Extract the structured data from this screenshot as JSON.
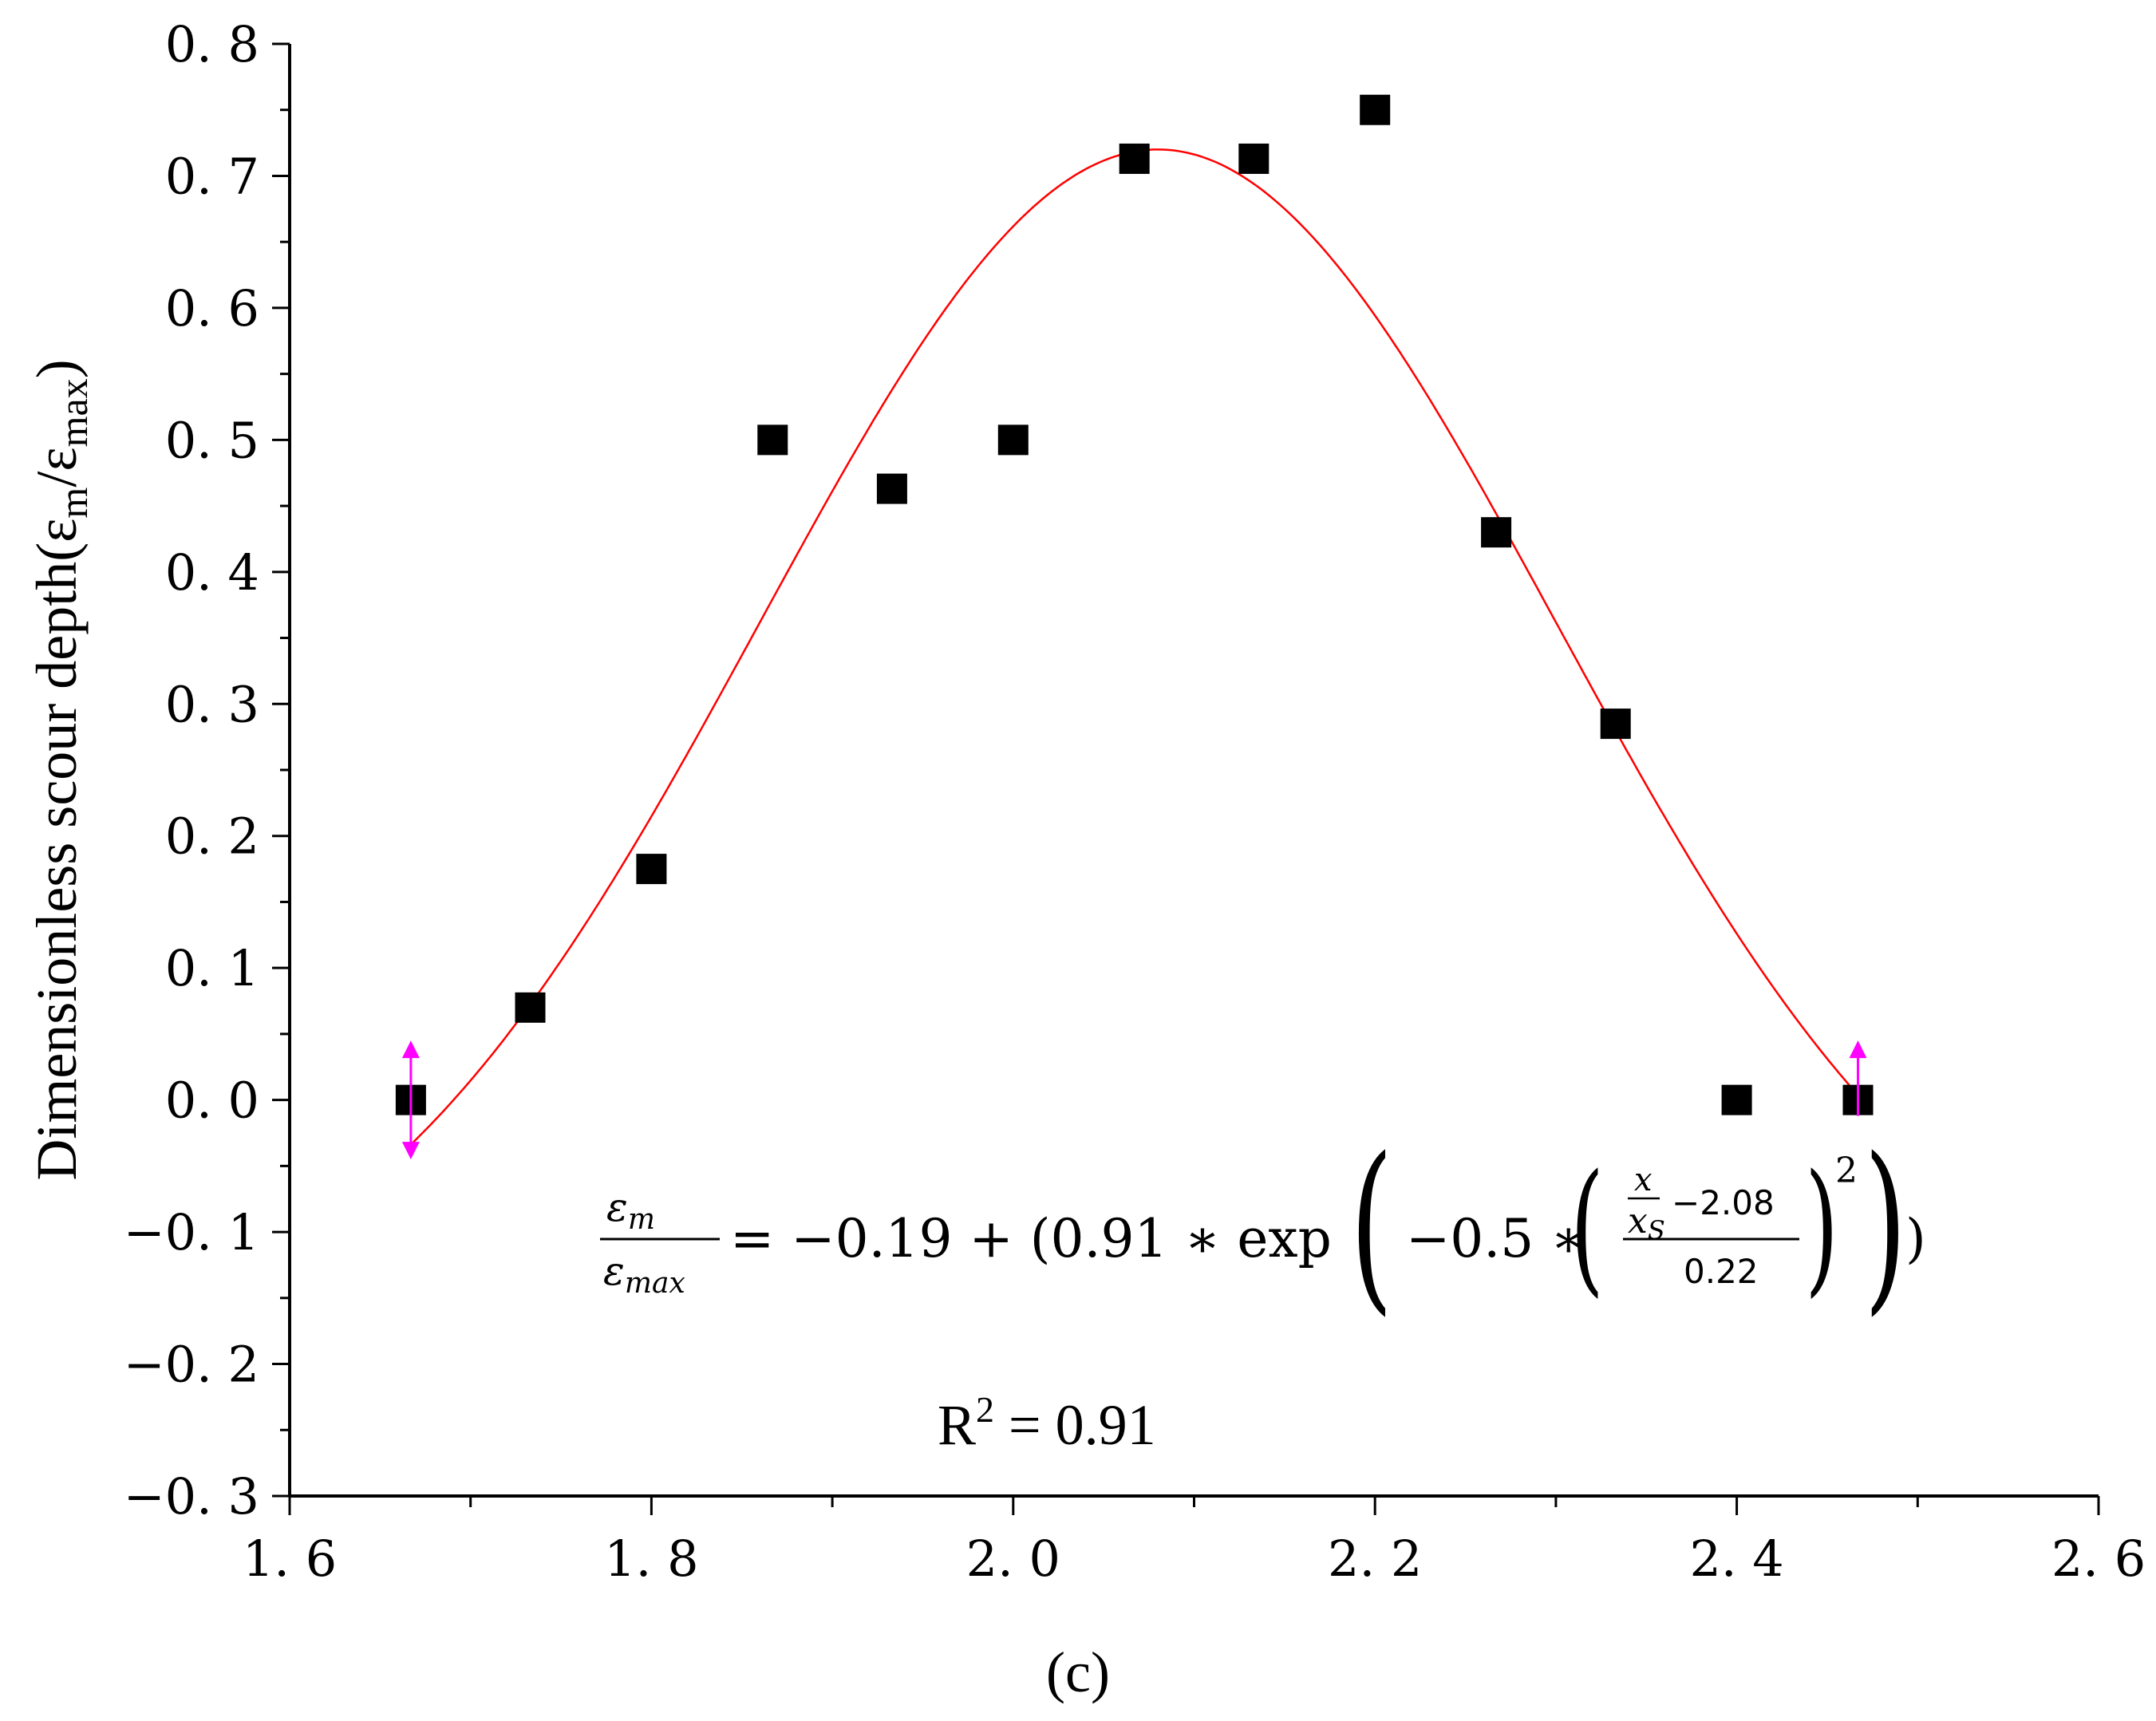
{
  "chart_data": {
    "type": "scatter",
    "title": "",
    "xlabel": "",
    "ylabel": "Dimensionless scour depth(ε",
    "ylabel_sub_m": "m",
    "ylabel_slash": "/ε",
    "ylabel_sub_max": "max",
    "ylabel_close": ")",
    "xlim": [
      1.6,
      2.6
    ],
    "ylim": [
      -0.3,
      0.8
    ],
    "x_ticks": [
      1.6,
      1.8,
      2.0,
      2.2,
      2.4,
      2.6
    ],
    "x_tick_labels": [
      "1. 6",
      "1. 8",
      "2. 0",
      "2. 2",
      "2. 4",
      "2. 6"
    ],
    "y_ticks": [
      0.8,
      0.7,
      0.6,
      0.5,
      0.4,
      0.3,
      0.2,
      0.1,
      0.0,
      -0.1,
      -0.2,
      -0.3
    ],
    "y_tick_labels": [
      "0. 8",
      "0. 7",
      "0. 6",
      "0. 5",
      "0. 4",
      "0. 3",
      "0. 2",
      "0. 1",
      "0. 0",
      "−0. 1",
      "−0. 2",
      "−0. 3"
    ],
    "points": [
      {
        "x": 1.667,
        "y": 0.0
      },
      {
        "x": 1.733,
        "y": 0.07
      },
      {
        "x": 1.8,
        "y": 0.175
      },
      {
        "x": 1.867,
        "y": 0.5
      },
      {
        "x": 1.933,
        "y": 0.463
      },
      {
        "x": 2.0,
        "y": 0.5
      },
      {
        "x": 2.067,
        "y": 0.713
      },
      {
        "x": 2.133,
        "y": 0.713
      },
      {
        "x": 2.2,
        "y": 0.75
      },
      {
        "x": 2.267,
        "y": 0.43
      },
      {
        "x": 2.333,
        "y": 0.285
      },
      {
        "x": 2.4,
        "y": 0.0
      },
      {
        "x": 2.467,
        "y": 0.0
      }
    ],
    "fit": {
      "model": "gaussian",
      "y0": -0.19,
      "a": 0.91,
      "xc": 2.08,
      "w": 0.22,
      "x_range": [
        1.667,
        2.467
      ],
      "color": "#ff0000"
    },
    "arrow_color": "#ff00ff",
    "marker_color": "#000000",
    "equation": {
      "lhs_num": "ε",
      "lhs_num_sub": "m",
      "lhs_den": "ε",
      "lhs_den_sub": "max",
      "rhs_start": "= −0.19 + (0.91 ∗ exp",
      "inner_minus": "−0.5 ∗",
      "x": "x",
      "xs": "x",
      "xs_sub": "S",
      "minus_val": "−2.08",
      "den_val": "0.22",
      "power": "2",
      "close": ")"
    },
    "r_squared_label": "R",
    "r_squared_sup": "2",
    "r_squared_value": " = 0.91",
    "panel_label": "(c)"
  }
}
